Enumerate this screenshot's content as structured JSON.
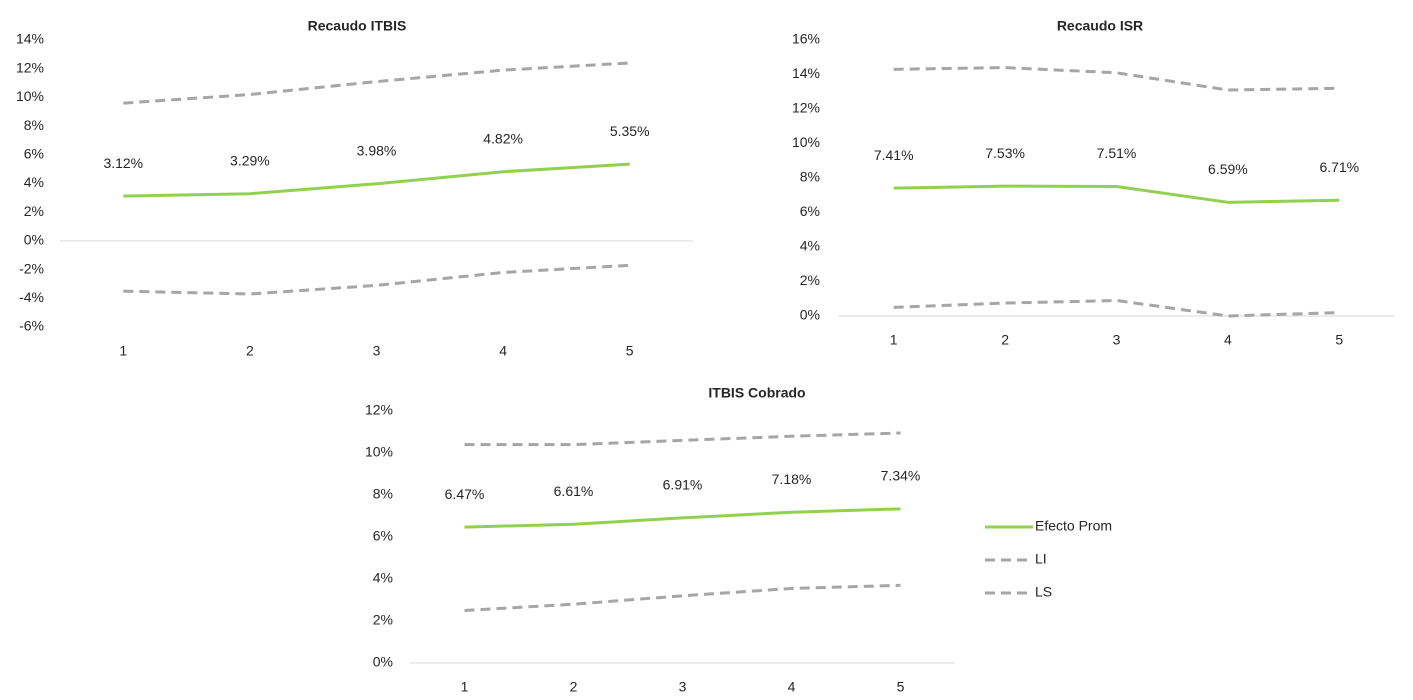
{
  "chart_data": [
    {
      "type": "line",
      "title": "Recaudo ITBIS",
      "categories": [
        "1",
        "2",
        "3",
        "4",
        "5"
      ],
      "ylim": [
        -6,
        14
      ],
      "yticks": [
        {
          "value": -6,
          "label": "-6%"
        },
        {
          "value": -4,
          "label": "-4%"
        },
        {
          "value": -2,
          "label": "-2%"
        },
        {
          "value": 0,
          "label": "0%"
        },
        {
          "value": 2,
          "label": "2%"
        },
        {
          "value": 4,
          "label": "4%"
        },
        {
          "value": 6,
          "label": "6%"
        },
        {
          "value": 8,
          "label": "8%"
        },
        {
          "value": 10,
          "label": "10%"
        },
        {
          "value": 12,
          "label": "12%"
        },
        {
          "value": 14,
          "label": "14%"
        }
      ],
      "series": [
        {
          "color": "#92d050",
          "style": "solid",
          "values": [
            3.12,
            3.29,
            3.98,
            4.82,
            5.35
          ],
          "value_labels": [
            "3.12%",
            "3.29%",
            "3.98%",
            "4.82%",
            "5.35%"
          ]
        },
        {
          "color": "#a6a6a6",
          "style": "dashed",
          "values": [
            -3.5,
            -3.7,
            -3.1,
            -2.2,
            -1.7
          ]
        },
        {
          "color": "#a6a6a6",
          "style": "dashed",
          "values": [
            9.6,
            10.2,
            11.1,
            11.9,
            12.4
          ]
        }
      ]
    },
    {
      "type": "line",
      "title": "Recaudo ISR",
      "categories": [
        "1",
        "2",
        "3",
        "4",
        "5"
      ],
      "ylim": [
        0,
        16
      ],
      "yticks": [
        {
          "value": 0,
          "label": "0%"
        },
        {
          "value": 2,
          "label": "2%"
        },
        {
          "value": 4,
          "label": "4%"
        },
        {
          "value": 6,
          "label": "6%"
        },
        {
          "value": 8,
          "label": "8%"
        },
        {
          "value": 10,
          "label": "10%"
        },
        {
          "value": 12,
          "label": "12%"
        },
        {
          "value": 14,
          "label": "14%"
        },
        {
          "value": 16,
          "label": "16%"
        }
      ],
      "series": [
        {
          "color": "#92d050",
          "style": "solid",
          "values": [
            7.41,
            7.53,
            7.51,
            6.59,
            6.71
          ],
          "value_labels": [
            "7.41%",
            "7.53%",
            "7.51%",
            "6.59%",
            "6.71%"
          ]
        },
        {
          "color": "#a6a6a6",
          "style": "dashed",
          "values": [
            0.5,
            0.75,
            0.9,
            0,
            0.2
          ]
        },
        {
          "color": "#a6a6a6",
          "style": "dashed",
          "values": [
            14.3,
            14.4,
            14.1,
            13.1,
            13.2
          ]
        }
      ]
    },
    {
      "type": "line",
      "title": "ITBIS Cobrado",
      "categories": [
        "1",
        "2",
        "3",
        "4",
        "5"
      ],
      "ylim": [
        0,
        12
      ],
      "yticks": [
        {
          "value": 0,
          "label": "0%"
        },
        {
          "value": 2,
          "label": "2%"
        },
        {
          "value": 4,
          "label": "4%"
        },
        {
          "value": 6,
          "label": "6%"
        },
        {
          "value": 8,
          "label": "8%"
        },
        {
          "value": 10,
          "label": "10%"
        },
        {
          "value": 12,
          "label": "12%"
        }
      ],
      "legend": "right",
      "series": [
        {
          "name": "Efecto Prom",
          "color": "#92d050",
          "style": "solid",
          "values": [
            6.47,
            6.61,
            6.91,
            7.18,
            7.34
          ],
          "value_labels": [
            "6.47%",
            "6.61%",
            "6.91%",
            "7.18%",
            "7.34%"
          ]
        },
        {
          "name": "LI",
          "color": "#a6a6a6",
          "style": "dashed",
          "values": [
            2.5,
            2.8,
            3.2,
            3.55,
            3.7
          ]
        },
        {
          "name": "LS",
          "color": "#a6a6a6",
          "style": "dashed",
          "values": [
            10.4,
            10.4,
            10.6,
            10.8,
            10.95
          ]
        }
      ]
    }
  ]
}
